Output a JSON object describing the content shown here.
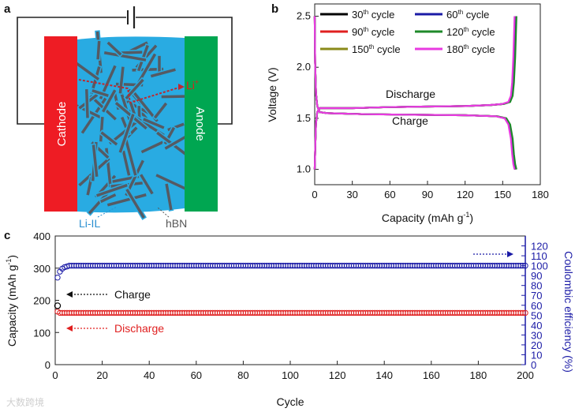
{
  "panel_a": {
    "letter": "a",
    "cathode_label": "Cathode",
    "anode_label": "Anode",
    "ion_label": "Li",
    "ion_charge": "+",
    "electrolyte_label": "Li-IL",
    "filler_label": "hBN",
    "colors": {
      "cathode": "#ee1c24",
      "anode": "#00a651",
      "electrolyte": "#29abe2",
      "flakes": "#555a63",
      "ion_path": "#c1272d"
    }
  },
  "chart_data": [
    {
      "panel": "b",
      "type": "line",
      "xlabel": "Capacity (mAh g",
      "xlabel_sup": "-1",
      "xlabel_end": ")",
      "ylabel": "Voltage (V)",
      "xlim": [
        0,
        180
      ],
      "ylim": [
        0.85,
        2.62
      ],
      "xticks": [
        0,
        30,
        60,
        90,
        120,
        150,
        180
      ],
      "yticks": [
        1.0,
        1.5,
        2.0,
        2.5
      ],
      "grid": false,
      "legend_position": "top",
      "annotations": [
        "Discharge",
        "Charge"
      ],
      "series": [
        {
          "name": "30",
          "suffix": "th",
          "word": "cycle",
          "color": "#000000",
          "capacity": 160
        },
        {
          "name": "60",
          "suffix": "th",
          "word": "cycle",
          "color": "#1a1aa6",
          "capacity": 160
        },
        {
          "name": "90",
          "suffix": "th",
          "word": "cycle",
          "color": "#e02020",
          "capacity": 160.5
        },
        {
          "name": "120",
          "suffix": "th",
          "word": "cycle",
          "color": "#1f8a2a",
          "capacity": 161
        },
        {
          "name": "150",
          "suffix": "th",
          "word": "cycle",
          "color": "#8a8a1a",
          "capacity": 160
        },
        {
          "name": "180",
          "suffix": "th",
          "word": "cycle",
          "color": "#e83ae0",
          "capacity": 159.5
        }
      ],
      "discharge_curve": [
        [
          0,
          1.0
        ],
        [
          0.5,
          1.25
        ],
        [
          1,
          1.45
        ],
        [
          2,
          1.56
        ],
        [
          4,
          1.6
        ],
        [
          8,
          1.6
        ],
        [
          30,
          1.6
        ],
        [
          60,
          1.61
        ],
        [
          90,
          1.615
        ],
        [
          120,
          1.62
        ],
        [
          140,
          1.63
        ],
        [
          150,
          1.64
        ],
        [
          155,
          1.66
        ],
        [
          157,
          1.72
        ],
        [
          158,
          1.85
        ],
        [
          159,
          2.1
        ],
        [
          160,
          2.5
        ]
      ],
      "charge_curve": [
        [
          0,
          2.5
        ],
        [
          0.3,
          2.05
        ],
        [
          1,
          1.75
        ],
        [
          2,
          1.62
        ],
        [
          4,
          1.56
        ],
        [
          10,
          1.55
        ],
        [
          40,
          1.54
        ],
        [
          80,
          1.535
        ],
        [
          120,
          1.53
        ],
        [
          145,
          1.52
        ],
        [
          152,
          1.5
        ],
        [
          155,
          1.44
        ],
        [
          157,
          1.3
        ],
        [
          158,
          1.15
        ],
        [
          159,
          1.05
        ],
        [
          160,
          1.0
        ]
      ]
    },
    {
      "panel": "c",
      "type": "scatter",
      "xlabel": "Cycle",
      "ylabel": "Capacity (mAh g",
      "ylabel_sup": "-1",
      "ylabel_end": ")",
      "y2label": "Coulombic efficiency (%)",
      "xlim": [
        0,
        200
      ],
      "ylim": [
        0,
        400
      ],
      "y2lim": [
        0,
        130
      ],
      "xticks": [
        0,
        20,
        40,
        60,
        80,
        100,
        120,
        140,
        160,
        180,
        200
      ],
      "yticks": [
        0,
        100,
        200,
        300,
        400
      ],
      "y2ticks": [
        0,
        10,
        20,
        30,
        40,
        50,
        60,
        70,
        80,
        90,
        100,
        110,
        120
      ],
      "annotations": {
        "charge": "Charge",
        "discharge": "Discharge"
      },
      "series": [
        {
          "name": "Charge",
          "axis": "left",
          "color": "#000000",
          "first_value": 183,
          "value": 162
        },
        {
          "name": "Discharge",
          "axis": "left",
          "color": "#e02020",
          "first_value": 165,
          "value": 161
        },
        {
          "name": "Coulombic efficiency",
          "axis": "right",
          "color": "#1a1aa6",
          "first_values": [
            88,
            94,
            97,
            98.5,
            99.2
          ],
          "value": 100
        }
      ],
      "cycles": 200
    }
  ],
  "watermark": "大数跨境"
}
